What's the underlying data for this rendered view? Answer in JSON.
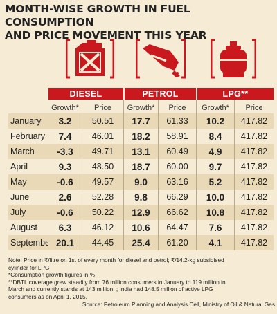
{
  "title": {
    "line1": "MONTH-WISE GROWTH IN FUEL CONSUMPTION",
    "line2": "AND PRICE MOVEMENT THIS YEAR"
  },
  "icons": [
    "fuel-can-icon",
    "fuel-nozzle-icon",
    "gas-cylinder-icon"
  ],
  "colors": {
    "accent": "#c9181e",
    "background": "#f6ecd6",
    "row_shade": "#ead9b7"
  },
  "headers": {
    "diesel": "DIESEL",
    "petrol": "PETROL",
    "lpg": "LPG**"
  },
  "subheaders": {
    "growth": "Growth*",
    "price": "Price"
  },
  "rows": [
    {
      "month": "January",
      "dg": "3.2",
      "dp": "50.51",
      "pg": "17.7",
      "pp": "61.33",
      "lg": "10.2",
      "lp": "417.82"
    },
    {
      "month": "February",
      "dg": "7.4",
      "dp": "46.01",
      "pg": "18.2",
      "pp": "58.91",
      "lg": "8.4",
      "lp": "417.82"
    },
    {
      "month": "March",
      "dg": "-3.3",
      "dp": "49.71",
      "pg": "13.1",
      "pp": "60.49",
      "lg": "4.9",
      "lp": "417.82"
    },
    {
      "month": "April",
      "dg": "9.3",
      "dp": "48.50",
      "pg": "18.7",
      "pp": "60.00",
      "lg": "9.7",
      "lp": "417.82"
    },
    {
      "month": "May",
      "dg": "-0.6",
      "dp": "49.57",
      "pg": "9.0",
      "pp": "63.16",
      "lg": "5.2",
      "lp": "417.82"
    },
    {
      "month": "June",
      "dg": "2.6",
      "dp": "52.28",
      "pg": "9.8",
      "pp": "66.29",
      "lg": "10.0",
      "lp": "417.82"
    },
    {
      "month": "July",
      "dg": "-0.6",
      "dp": "50.22",
      "pg": "12.9",
      "pp": "66.62",
      "lg": "10.8",
      "lp": "417.82"
    },
    {
      "month": "August",
      "dg": "6.3",
      "dp": "46.12",
      "pg": "10.6",
      "pp": "64.47",
      "lg": "7.6",
      "lp": "417.82"
    },
    {
      "month": "September",
      "dg": "20.1",
      "dp": "44.45",
      "pg": "25.4",
      "pp": "61.20",
      "lg": "4.1",
      "lp": "417.82"
    }
  ],
  "notes": {
    "line1": "Note: Price in ₹/litre on 1st of every month for diesel and petrol; ₹/14.2-kg subsidised",
    "line2": "cylinder for LPG",
    "line3": "*Consumption growth figures in %",
    "line4": "**DBTL coverage grew steadily from 76 million consumers in January to 119 million in",
    "line5": "March and currently stands at 143 million. ; India had 148.5 million of active LPG",
    "line6": "consumers as on April 1, 2015.",
    "source": "Source: Petroleum Planning and Analysis Cell, Ministry of Oil & Natural Gas"
  }
}
